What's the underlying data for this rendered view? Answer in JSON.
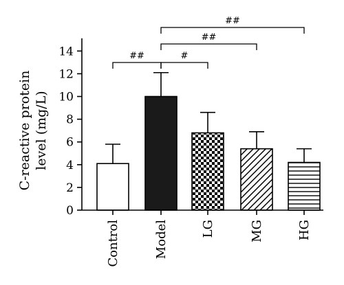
{
  "chart_data": {
    "type": "bar",
    "categories": [
      "Control",
      "Model",
      "LG",
      "MG",
      "HG"
    ],
    "values": [
      4.1,
      10.0,
      6.8,
      5.4,
      4.2
    ],
    "errors": [
      1.7,
      2.1,
      1.8,
      1.5,
      1.2
    ],
    "ylabel_line1": "C-reactive protein",
    "ylabel_line2": "level (mg/L)",
    "ylim": [
      0,
      15
    ],
    "yticks": [
      0,
      2,
      4,
      6,
      8,
      10,
      12,
      14
    ],
    "grid": false,
    "bar_fills": [
      "white",
      "black",
      "checker",
      "diagonal",
      "horizontal"
    ],
    "annotations": [
      {
        "from": "Control",
        "to": "Model",
        "label": "##",
        "level": 1
      },
      {
        "from": "Model",
        "to": "LG",
        "label": "#",
        "level": 1
      },
      {
        "from": "Model",
        "to": "MG",
        "label": "##",
        "level": 2
      },
      {
        "from": "Model",
        "to": "HG",
        "label": "##",
        "level": 3
      }
    ]
  }
}
